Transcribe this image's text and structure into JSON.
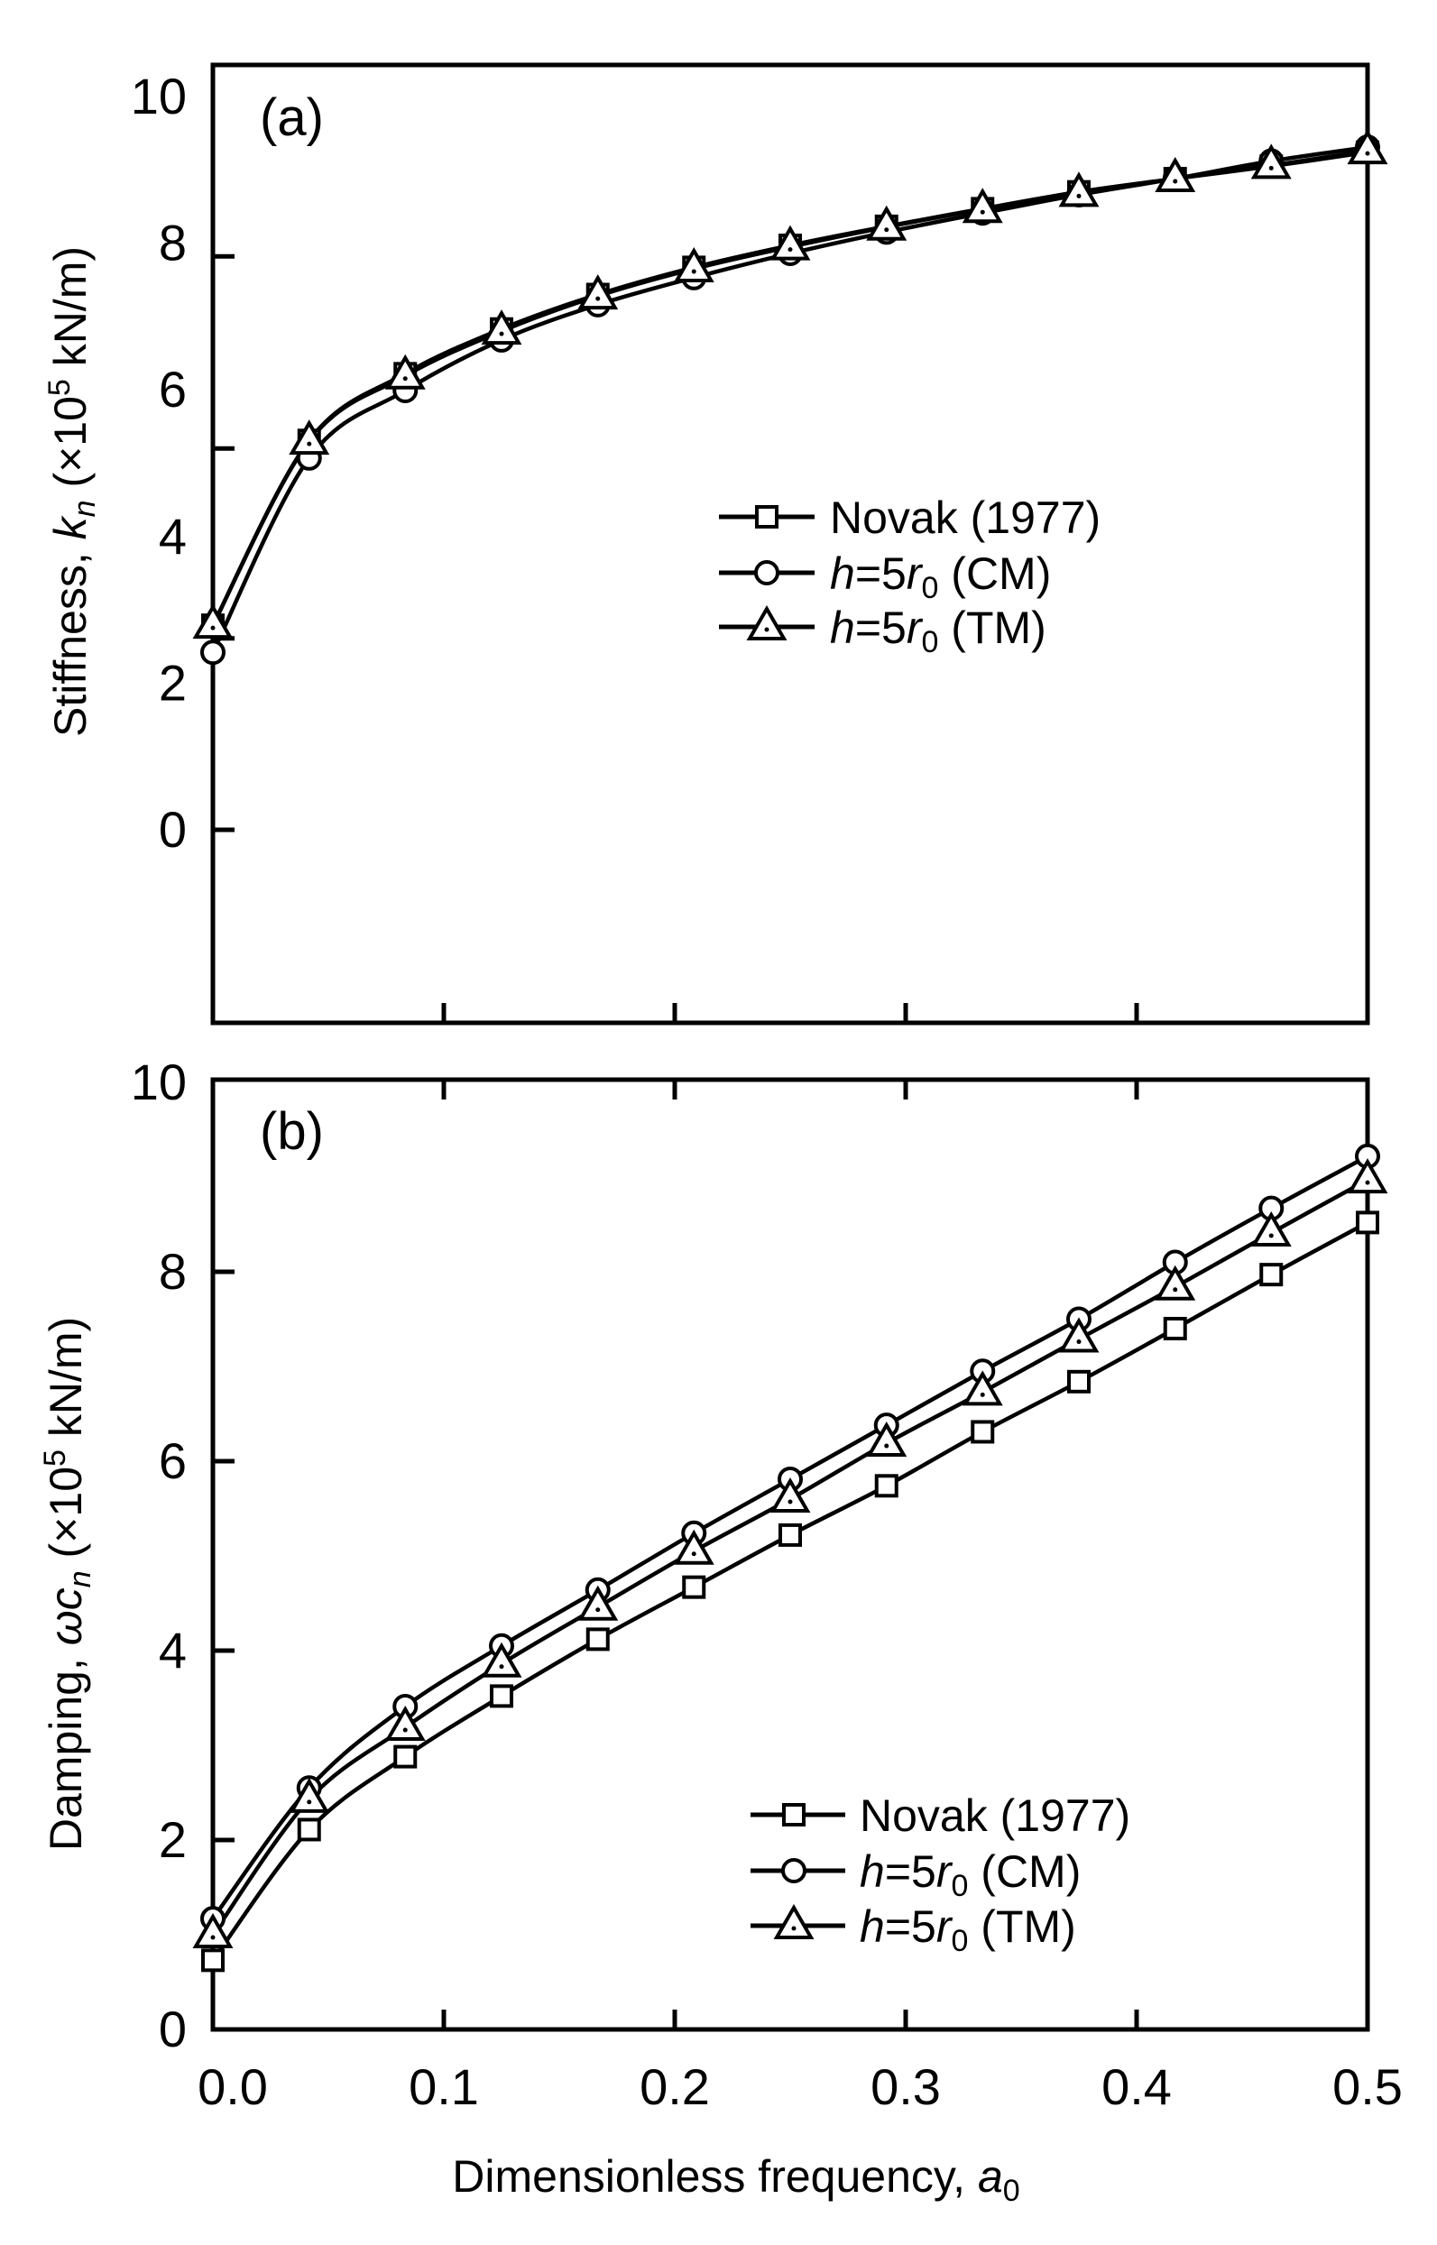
{
  "chart_data": [
    {
      "type": "line",
      "panel_label": "(a)",
      "ylabel": {
        "prefix": "Stiffness, ",
        "symbol": "k",
        "sub": "n",
        "unit_open": " (×10",
        "sup": "5",
        "unit_close": " kN/m)"
      },
      "ylim": [
        -2.64,
        10.5
      ],
      "ytick_labels": [
        "0",
        "2",
        "4",
        "6",
        "8",
        "10"
      ],
      "ytick_label_values": [
        0,
        2,
        4,
        6,
        8,
        10
      ],
      "ytick_mark_values": [
        0,
        2.61,
        5.2,
        7.82
      ],
      "xlim": [
        0,
        0.5
      ],
      "xtick_mark_values": [
        0.1,
        0.2,
        0.3,
        0.4
      ],
      "legend_position": "center-right",
      "x": [
        0,
        0.0417,
        0.0833,
        0.125,
        0.1667,
        0.2083,
        0.25,
        0.2917,
        0.3333,
        0.375,
        0.4167,
        0.4583,
        0.5
      ],
      "series": [
        {
          "name": "Novak (1977)",
          "marker": "square",
          "values": [
            2.79,
            5.31,
            6.22,
            6.83,
            7.3,
            7.67,
            7.97,
            8.23,
            8.47,
            8.7,
            8.88,
            9.05,
            9.24
          ]
        },
        {
          "name": "h=5r0 (CM)",
          "marker": "circle",
          "values": [
            2.42,
            5.07,
            5.99,
            6.68,
            7.16,
            7.53,
            7.86,
            8.15,
            8.41,
            8.66,
            8.88,
            9.12,
            9.31
          ]
        },
        {
          "name": "h=5r0 (TM)",
          "marker": "triangle",
          "values": [
            2.79,
            5.3,
            6.19,
            6.8,
            7.28,
            7.65,
            7.95,
            8.22,
            8.46,
            8.68,
            8.88,
            9.06,
            9.26
          ]
        }
      ]
    },
    {
      "type": "line",
      "panel_label": "(b)",
      "ylabel": {
        "prefix": "Damping, ",
        "symbol": "ωc",
        "sub": "n",
        "unit_open": " (×10",
        "sup": "5",
        "unit_close": " kN/m)"
      },
      "ylim": [
        0,
        10
      ],
      "ytick_labels": [
        "0",
        "2",
        "4",
        "6",
        "8",
        "10"
      ],
      "ytick_label_values": [
        0,
        2,
        4,
        6,
        8,
        10
      ],
      "ytick_mark_values": [
        2,
        4,
        6,
        8
      ],
      "xlim": [
        0,
        0.5
      ],
      "xtick_mark_values": [
        0.1,
        0.2,
        0.3,
        0.4
      ],
      "xtick_labels": [
        "0.0",
        "0.1",
        "0.2",
        "0.3",
        "0.4",
        "0.5"
      ],
      "xtick_label_values": [
        0,
        0.1,
        0.2,
        0.3,
        0.4,
        0.5
      ],
      "xlabel": {
        "text": "Dimensionless frequency, ",
        "symbol": "a",
        "sub": "0"
      },
      "legend_position": "bottom-right",
      "x": [
        0,
        0.0417,
        0.0833,
        0.125,
        0.1667,
        0.2083,
        0.25,
        0.2917,
        0.3333,
        0.375,
        0.4167,
        0.4583,
        0.5
      ],
      "series": [
        {
          "name": "Novak (1977)",
          "marker": "square",
          "values": [
            0.73,
            2.11,
            2.88,
            3.52,
            4.12,
            4.67,
            5.22,
            5.74,
            6.31,
            6.84,
            7.4,
            7.97,
            8.52
          ]
        },
        {
          "name": "h=5r0 (CM)",
          "marker": "circle",
          "values": [
            1.17,
            2.55,
            3.41,
            4.05,
            4.64,
            5.24,
            5.81,
            6.38,
            6.95,
            7.5,
            8.1,
            8.67,
            9.22
          ]
        },
        {
          "name": "h=5r0 (TM)",
          "marker": "triangle",
          "values": [
            1.0,
            2.43,
            3.19,
            3.86,
            4.46,
            5.05,
            5.6,
            6.19,
            6.73,
            7.29,
            7.84,
            8.41,
            8.97
          ]
        }
      ]
    }
  ],
  "legend": [
    {
      "label": "Novak (1977)",
      "italic_part": "",
      "marker": "square"
    },
    {
      "label_italic": "h",
      "label_mid": "=5",
      "label_italic2": "r",
      "label_sub": "0",
      "label_tail": " (CM)",
      "marker": "circle"
    },
    {
      "label_italic": "h",
      "label_mid": "=5",
      "label_italic2": "r",
      "label_sub": "0",
      "label_tail": " (TM)",
      "marker": "triangle"
    }
  ],
  "colors": {
    "ink": "#000000",
    "background": "#ffffff"
  }
}
